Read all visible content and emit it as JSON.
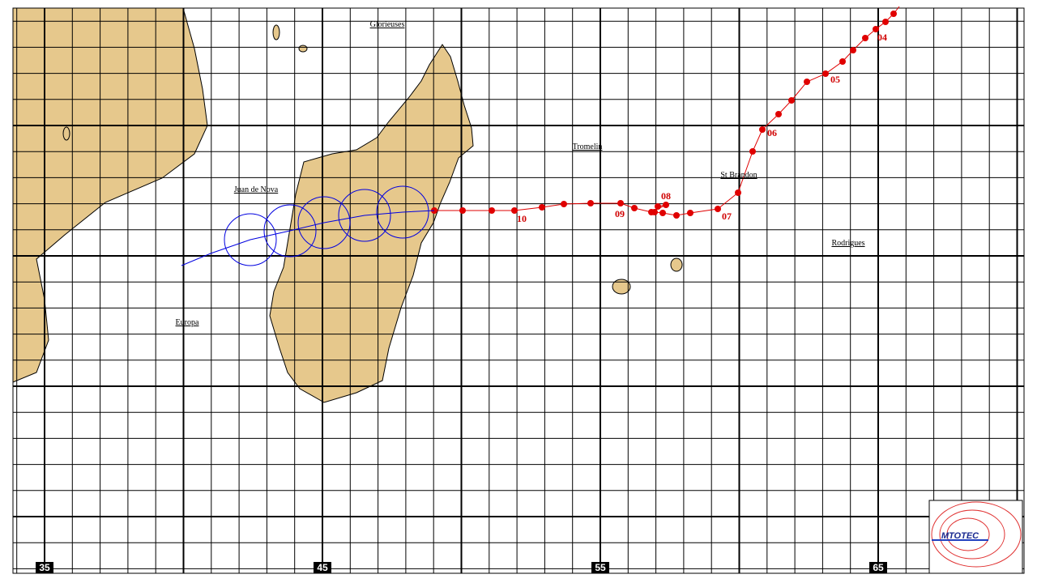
{
  "map": {
    "places": [
      "Glorieuses",
      "Tromelin",
      "St Brandon",
      "Juan de Nova",
      "Rodrigues",
      "Europa"
    ],
    "track_labels": [
      "04",
      "05",
      "06",
      "07",
      "08",
      "09",
      "10"
    ],
    "longitude_labels": [
      35,
      45,
      55,
      65
    ],
    "logo": "MTOTEC"
  }
}
